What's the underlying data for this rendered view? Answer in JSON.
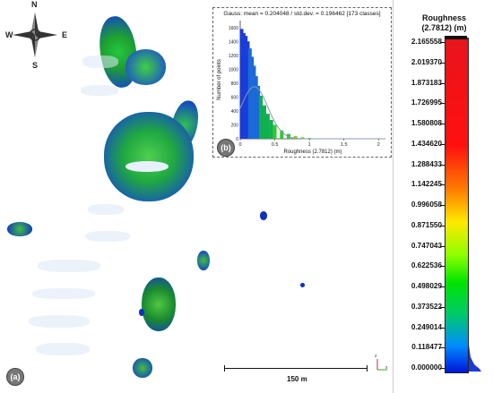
{
  "compass": {
    "north": "N",
    "south": "S",
    "east": "E",
    "west": "W"
  },
  "inset": {
    "label": "(b)",
    "title": "Gauss: mean = 0.204048 / std.dev. = 0.196462 [173 classes]",
    "ylabel": "Number of points",
    "xlabel": "Roughness (2.7812) (m)",
    "y_ticks": [
      "0",
      "200",
      "400",
      "600",
      "800",
      "1000",
      "1200",
      "1400",
      "1600"
    ],
    "x_ticks": [
      "0",
      "0.5",
      "1",
      "1.5",
      "2"
    ]
  },
  "map_label": "(a)",
  "scale": {
    "text": "150 m"
  },
  "axes_triad": {
    "x": "x",
    "z": "z"
  },
  "legend": {
    "title_line1": "Roughness",
    "title_line2": "(2.7812) (m)",
    "ticks": [
      "2.165558",
      "2.019370",
      "1.873183",
      "1.726995",
      "1.580808",
      "1.434620",
      "1.288433",
      "1.142245",
      "0.996058",
      "0.871550",
      "0.747043",
      "0.622536",
      "0.498029",
      "0.373522",
      "0.249014",
      "0.118477",
      "0.000000"
    ]
  },
  "chart_data": {
    "type": "bar",
    "title": "Gauss: mean = 0.204048 / std.dev. = 0.196462 [173 classes]",
    "xlabel": "Roughness (2.7812) (m)",
    "ylabel": "Number of points",
    "xlim": [
      0,
      2.1
    ],
    "ylim": [
      0,
      1700
    ],
    "x": [
      0.02,
      0.05,
      0.08,
      0.11,
      0.14,
      0.17,
      0.2,
      0.23,
      0.26,
      0.3,
      0.35,
      0.4,
      0.45,
      0.5,
      0.6,
      0.7,
      0.8,
      0.9,
      1.0,
      1.2,
      1.4,
      1.6
    ],
    "values": [
      1580,
      1520,
      1480,
      1400,
      1300,
      1180,
      1050,
      900,
      760,
      620,
      480,
      360,
      270,
      200,
      120,
      70,
      40,
      22,
      12,
      6,
      3,
      1
    ],
    "gauss": {
      "mean": 0.204048,
      "std": 0.196462
    }
  }
}
